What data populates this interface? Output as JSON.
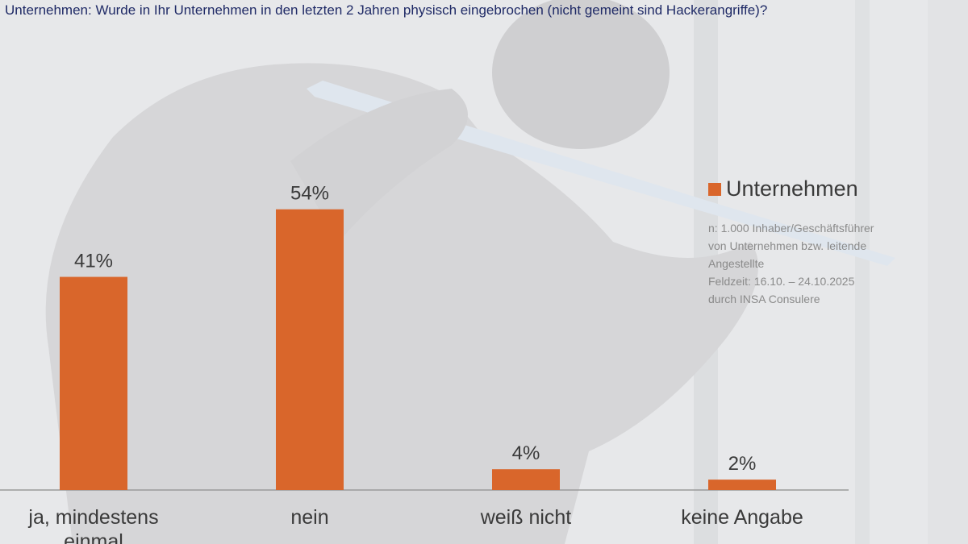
{
  "title": "Unternehmen: Wurde in Ihr Unternehmen in den letzten 2 Jahren physisch eingebrochen (nicht gemeint sind Hackerangriffe)?",
  "colors": {
    "bar": "#d9662b",
    "axis": "#9a9a9a",
    "text": "#3a3a3a",
    "title": "#1f2a66"
  },
  "legend": {
    "label": "Unternehmen"
  },
  "note": {
    "lines": [
      "n: 1.000 Inhaber/Geschäftsführer",
      "von Unternehmen bzw. leitende",
      "Angestellte",
      "Feldzeit: 16.10. – 24.10.2025",
      "durch INSA Consulere"
    ]
  },
  "chart_data": {
    "type": "bar",
    "categories": [
      "ja, mindestens einmal",
      "nein",
      "weiß nicht",
      "keine Angabe"
    ],
    "series": [
      {
        "name": "Unternehmen",
        "values": [
          41,
          54,
          4,
          2
        ]
      }
    ],
    "data_labels": [
      "41%",
      "54%",
      "4%",
      "2%"
    ],
    "ylim": [
      0,
      60
    ],
    "grid": false,
    "legend_position": "right"
  }
}
